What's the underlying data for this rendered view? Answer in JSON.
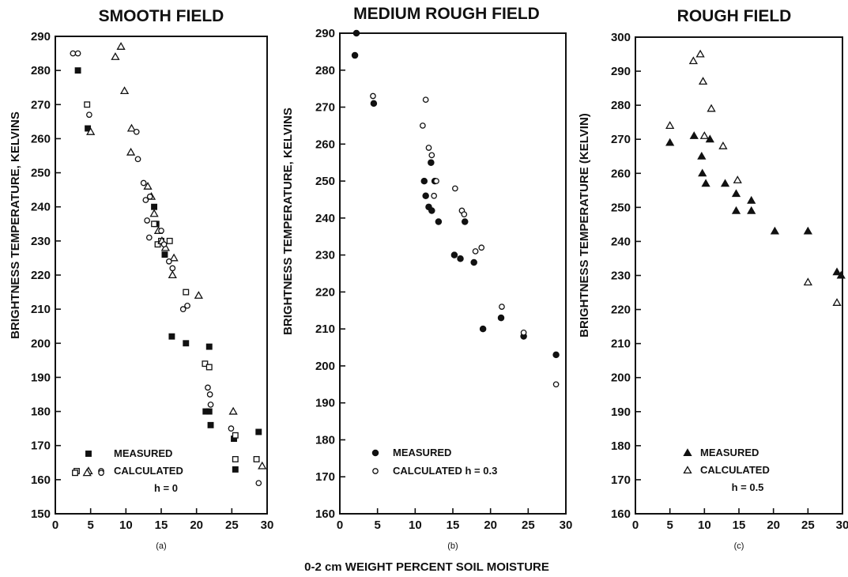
{
  "figure": {
    "xlabel": "0-2 cm WEIGHT PERCENT SOIL MOISTURE"
  },
  "chart_data": [
    {
      "type": "scatter",
      "title": "SMOOTH FIELD",
      "subtitle": "(a)",
      "ylabel": "BRIGHTNESS TEMPERATURE, KELVINS",
      "xlabel": "",
      "xlim": [
        0,
        30
      ],
      "ylim": [
        150,
        290
      ],
      "xticks": [
        0,
        5,
        10,
        15,
        20,
        25,
        30
      ],
      "yticks": [
        150,
        160,
        170,
        180,
        190,
        200,
        210,
        220,
        230,
        240,
        250,
        260,
        270,
        280,
        290
      ],
      "grid": false,
      "legend": {
        "entries": [
          {
            "label": "MEASURED",
            "symbols": [
              "filled-square"
            ]
          },
          {
            "label": "CALCULATED",
            "symbols": [
              "open-square",
              "open-triangle",
              "open-circle"
            ]
          }
        ],
        "note": "h = 0",
        "placement": "bottom-center"
      },
      "series": [
        {
          "name": "MEASURED",
          "marker": "filled-square",
          "x": [
            3.2,
            4.6,
            14.0,
            14.3,
            15.5,
            16.5,
            18.5,
            21.3,
            21.8,
            22.0,
            21.8,
            25.3,
            25.5,
            28.8
          ],
          "y": [
            280,
            263,
            240,
            235,
            226,
            202,
            200,
            180,
            180,
            176,
            199,
            172,
            163,
            174
          ]
        },
        {
          "name": "CALCULATED",
          "marker": "open-square",
          "x": [
            2.8,
            4.5,
            14.0,
            14.5,
            15.0,
            16.2,
            18.5,
            21.2,
            21.8,
            25.5,
            25.5,
            28.5
          ],
          "y": [
            162,
            270,
            235,
            229,
            230,
            230,
            215,
            194,
            193,
            173,
            166,
            166
          ]
        },
        {
          "name": "CALCULATED",
          "marker": "open-triangle",
          "x": [
            4.5,
            5.0,
            8.5,
            9.3,
            9.8,
            10.8,
            10.7,
            13.1,
            13.6,
            14.0,
            14.6,
            15.1,
            15.6,
            16.6,
            16.8,
            20.3,
            25.2,
            29.3
          ],
          "y": [
            162,
            262,
            284,
            287,
            274,
            263,
            256,
            246,
            243,
            238,
            233,
            230,
            228,
            220,
            225,
            214,
            180,
            164
          ]
        },
        {
          "name": "CALCULATED",
          "marker": "open-circle",
          "x": [
            6.5,
            2.5,
            3.2,
            4.8,
            11.5,
            11.7,
            12.5,
            12.8,
            13.0,
            13.3,
            13.4,
            15.0,
            15.4,
            16.1,
            16.6,
            18.1,
            18.7,
            21.6,
            21.9,
            22.0,
            24.9,
            28.8
          ],
          "y": [
            162,
            285,
            285,
            267,
            262,
            254,
            247,
            242,
            236,
            231,
            243,
            233,
            229,
            224,
            222,
            210,
            211,
            187,
            185,
            182,
            175,
            159
          ]
        }
      ]
    },
    {
      "type": "scatter",
      "title": "MEDIUM ROUGH FIELD",
      "subtitle": "(b)",
      "ylabel": "BRIGHTNESS TEMPERATURE, KELVINS",
      "xlabel": "",
      "xlim": [
        0,
        30
      ],
      "ylim": [
        160,
        290
      ],
      "xticks": [
        0,
        5,
        10,
        15,
        20,
        25,
        30
      ],
      "yticks": [
        160,
        170,
        180,
        190,
        200,
        210,
        220,
        230,
        240,
        250,
        260,
        270,
        280,
        290
      ],
      "grid": false,
      "legend": {
        "entries": [
          {
            "label": "MEASURED",
            "symbols": [
              "filled-circle"
            ]
          },
          {
            "label": "CALCULATED h = 0.3",
            "symbols": [
              "open-circle"
            ]
          }
        ],
        "placement": "bottom-left"
      },
      "series": [
        {
          "name": "MEASURED",
          "marker": "filled-circle",
          "x": [
            2.0,
            2.2,
            4.5,
            11.2,
            11.4,
            11.8,
            12.1,
            12.2,
            12.6,
            13.1,
            15.2,
            16.0,
            16.6,
            17.8,
            19.0,
            21.4,
            24.4,
            28.7
          ],
          "y": [
            284,
            290,
            271,
            250,
            246,
            243,
            255,
            242,
            250,
            239,
            230,
            229,
            239,
            228,
            210,
            213,
            208,
            203
          ]
        },
        {
          "name": "CALCULATED h = 0.3",
          "marker": "open-circle",
          "x": [
            4.4,
            11.0,
            11.4,
            11.8,
            12.2,
            12.5,
            12.8,
            15.3,
            16.2,
            16.5,
            18.0,
            18.8,
            21.5,
            24.4,
            28.7
          ],
          "y": [
            273,
            265,
            272,
            259,
            257,
            246,
            250,
            248,
            242,
            241,
            231,
            232,
            216,
            209,
            195
          ]
        }
      ]
    },
    {
      "type": "scatter",
      "title": "ROUGH FIELD",
      "subtitle": "(c)",
      "ylabel": "BRIGHTNESS TEMPERATURE (KELVIN)",
      "xlabel": "",
      "xlim": [
        0,
        30
      ],
      "ylim": [
        160,
        300
      ],
      "xticks": [
        0,
        5,
        10,
        15,
        20,
        25,
        30
      ],
      "yticks": [
        160,
        170,
        180,
        190,
        200,
        210,
        220,
        230,
        240,
        250,
        260,
        270,
        280,
        290,
        300
      ],
      "grid": false,
      "legend": {
        "entries": [
          {
            "label": "MEASURED",
            "symbols": [
              "filled-triangle"
            ]
          },
          {
            "label": "CALCULATED",
            "symbols": [
              "open-triangle"
            ]
          }
        ],
        "note": "h = 0.5",
        "placement": "bottom-center"
      },
      "series": [
        {
          "name": "MEASURED",
          "marker": "filled-triangle",
          "x": [
            5.0,
            8.5,
            9.6,
            9.7,
            10.2,
            10.8,
            13.0,
            14.6,
            14.6,
            16.8,
            16.8,
            20.2,
            25.0,
            29.2,
            29.8
          ],
          "y": [
            269,
            271,
            265,
            260,
            257,
            270,
            257,
            254,
            249,
            252,
            249,
            243,
            243,
            231,
            230
          ]
        },
        {
          "name": "CALCULATED",
          "marker": "open-triangle",
          "x": [
            5.0,
            8.4,
            9.4,
            9.8,
            10.0,
            11.0,
            12.7,
            14.8,
            25.0,
            29.2
          ],
          "y": [
            274,
            293,
            295,
            287,
            271,
            279,
            268,
            258,
            228,
            222
          ]
        }
      ]
    }
  ]
}
